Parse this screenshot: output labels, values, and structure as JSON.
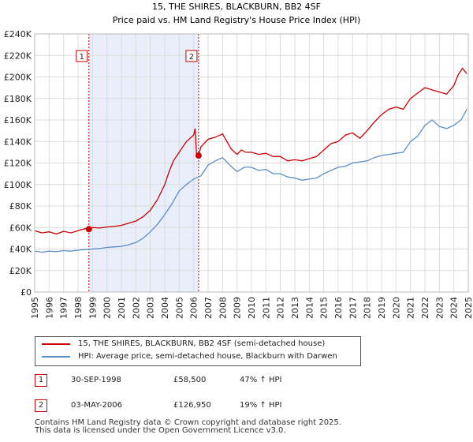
{
  "chart_data": {
    "type": "line",
    "title": "15, THE SHIRES, BLACKBURN, BB2 4SF",
    "subtitle": "Price paid vs. HM Land Registry's House Price Index (HPI)",
    "xlim": [
      1995,
      2025
    ],
    "ylim": [
      0,
      240000
    ],
    "x_ticks": [
      1995,
      1996,
      1997,
      1998,
      1999,
      2000,
      2001,
      2002,
      2003,
      2004,
      2005,
      2006,
      2007,
      2008,
      2009,
      2010,
      2011,
      2012,
      2013,
      2014,
      2015,
      2016,
      2017,
      2018,
      2019,
      2020,
      2021,
      2022,
      2023,
      2024,
      2025
    ],
    "y_ticks": [
      0,
      20000,
      40000,
      60000,
      80000,
      100000,
      120000,
      140000,
      160000,
      180000,
      200000,
      220000,
      240000
    ],
    "y_tick_labels": [
      "£0",
      "£20K",
      "£40K",
      "£60K",
      "£80K",
      "£100K",
      "£120K",
      "£140K",
      "£160K",
      "£180K",
      "£200K",
      "£220K",
      "£240K"
    ],
    "grid": true,
    "series": [
      {
        "name": "15, THE SHIRES, BLACKBURN, BB2 4SF (semi-detached house)",
        "color": "#cc0000",
        "x": [
          1995.0,
          1995.5,
          1996.0,
          1996.5,
          1997.0,
          1997.5,
          1998.0,
          1998.5,
          1998.75,
          1999.0,
          1999.5,
          2000.0,
          2000.5,
          2001.0,
          2001.5,
          2002.0,
          2002.5,
          2003.0,
          2003.5,
          2004.0,
          2004.3,
          2004.6,
          2005.0,
          2005.5,
          2006.0,
          2006.1,
          2006.2,
          2006.34,
          2006.5,
          2007.0,
          2007.5,
          2008.0,
          2008.3,
          2008.6,
          2009.0,
          2009.3,
          2009.6,
          2010.0,
          2010.5,
          2011.0,
          2011.5,
          2012.0,
          2012.5,
          2013.0,
          2013.5,
          2014.0,
          2014.5,
          2015.0,
          2015.5,
          2016.0,
          2016.5,
          2017.0,
          2017.5,
          2018.0,
          2018.5,
          2019.0,
          2019.5,
          2020.0,
          2020.5,
          2021.0,
          2021.5,
          2022.0,
          2022.5,
          2023.0,
          2023.5,
          2024.0,
          2024.3,
          2024.6,
          2024.9
        ],
        "y": [
          57000,
          55000,
          56000,
          54000,
          56500,
          55000,
          57000,
          59000,
          58500,
          60000,
          59500,
          60500,
          61000,
          62000,
          64000,
          66000,
          70000,
          76000,
          86000,
          100000,
          112000,
          122000,
          130000,
          140000,
          146000,
          152000,
          128000,
          126950,
          135000,
          142000,
          144000,
          147000,
          140000,
          133000,
          128000,
          132000,
          130000,
          130000,
          128000,
          129000,
          126000,
          126000,
          122000,
          123000,
          122000,
          124000,
          126000,
          132000,
          138000,
          140000,
          146000,
          148000,
          143000,
          150000,
          158000,
          165000,
          170000,
          172000,
          170000,
          180000,
          185000,
          190000,
          188000,
          186000,
          184000,
          192000,
          202000,
          208000,
          203000
        ]
      },
      {
        "name": "HPI: Average price, semi-detached house, Blackburn with Darwen",
        "color": "#5b8fc7",
        "x": [
          1995.0,
          1995.5,
          1996.0,
          1996.5,
          1997.0,
          1997.5,
          1998.0,
          1998.5,
          1999.0,
          1999.5,
          2000.0,
          2000.5,
          2001.0,
          2001.5,
          2002.0,
          2002.5,
          2003.0,
          2003.5,
          2004.0,
          2004.5,
          2005.0,
          2005.5,
          2006.0,
          2006.5,
          2007.0,
          2007.5,
          2008.0,
          2008.5,
          2009.0,
          2009.5,
          2010.0,
          2010.5,
          2011.0,
          2011.5,
          2012.0,
          2012.5,
          2013.0,
          2013.5,
          2014.0,
          2014.5,
          2015.0,
          2015.5,
          2016.0,
          2016.5,
          2017.0,
          2017.5,
          2018.0,
          2018.5,
          2019.0,
          2019.5,
          2020.0,
          2020.5,
          2021.0,
          2021.5,
          2022.0,
          2022.5,
          2023.0,
          2023.5,
          2024.0,
          2024.5,
          2024.9
        ],
        "y": [
          38000,
          37000,
          38000,
          37500,
          38500,
          38000,
          39000,
          39500,
          40000,
          40500,
          41500,
          42000,
          42500,
          44000,
          46000,
          50000,
          56000,
          63000,
          72000,
          82000,
          94000,
          100000,
          105000,
          108000,
          118000,
          122000,
          125000,
          118000,
          112000,
          116000,
          116000,
          113000,
          114000,
          110000,
          110000,
          107000,
          106000,
          104000,
          105000,
          106000,
          110000,
          113000,
          116000,
          117000,
          120000,
          121000,
          122000,
          125000,
          127000,
          128000,
          129000,
          130000,
          140000,
          145000,
          155000,
          160000,
          154000,
          152000,
          155000,
          160000,
          170000
        ]
      }
    ],
    "annotations": [
      {
        "label": "1",
        "x": 1998.75
      },
      {
        "label": "2",
        "x": 2006.34
      }
    ],
    "sale_points": [
      {
        "x": 1998.75,
        "y": 58500
      },
      {
        "x": 2006.34,
        "y": 126950
      }
    ]
  },
  "legend": {
    "entries": [
      {
        "label": "15, THE SHIRES, BLACKBURN, BB2 4SF (semi-detached house)",
        "color": "#cc0000"
      },
      {
        "label": "HPI: Average price, semi-detached house, Blackburn with Darwen",
        "color": "#5b8fc7"
      }
    ]
  },
  "sales": [
    {
      "marker": "1",
      "date": "30-SEP-1998",
      "price": "£58,500",
      "hpi": "47% ↑ HPI"
    },
    {
      "marker": "2",
      "date": "03-MAY-2006",
      "price": "£126,950",
      "hpi": "19% ↑ HPI"
    }
  ],
  "footer": {
    "line1": "Contains HM Land Registry data © Crown copyright and database right 2025.",
    "line2": "This data is licensed under the Open Government Licence v3.0."
  }
}
